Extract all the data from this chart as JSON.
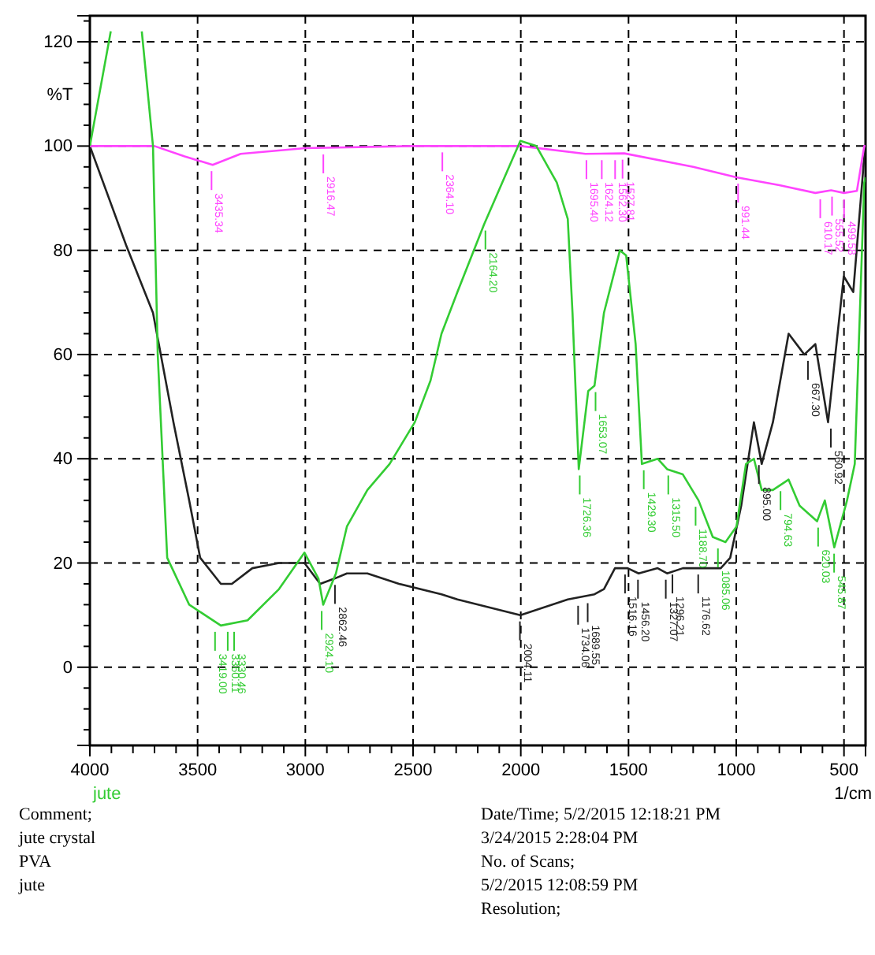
{
  "chart_data": {
    "type": "line",
    "xlabel": "1/cm",
    "ylabel": "%T",
    "xlim": [
      4000,
      400
    ],
    "ylim": [
      -15,
      125
    ],
    "xticks": [
      4000,
      {
        "value": 3900,
        "label": null
      },
      {
        "value": 3800,
        "label": null
      },
      {
        "value": 3700,
        "label": null
      },
      {
        "value": 3600,
        "label": null
      },
      3500,
      {
        "value": 3400,
        "label": null
      },
      {
        "value": 3300,
        "label": null
      },
      {
        "value": 3200,
        "label": null
      },
      {
        "value": 3100,
        "label": null
      },
      3000,
      {
        "value": 2900,
        "label": null
      },
      {
        "value": 2800,
        "label": null
      },
      {
        "value": 2700,
        "label": null
      },
      {
        "value": 2600,
        "label": null
      },
      2500,
      {
        "value": 2400,
        "label": null
      },
      {
        "value": 2300,
        "label": null
      },
      {
        "value": 2200,
        "label": null
      },
      {
        "value": 2100,
        "label": null
      },
      2000,
      {
        "value": 1900,
        "label": null
      },
      {
        "value": 1800,
        "label": null
      },
      {
        "value": 1700,
        "label": null
      },
      {
        "value": 1600,
        "label": null
      },
      1500,
      {
        "value": 1400,
        "label": null
      },
      {
        "value": 1300,
        "label": null
      },
      {
        "value": 1200,
        "label": null
      },
      {
        "value": 1100,
        "label": null
      },
      1000,
      {
        "value": 900,
        "label": null
      },
      {
        "value": 800,
        "label": null
      },
      {
        "value": 700,
        "label": null
      },
      {
        "value": 600,
        "label": null
      },
      500
    ],
    "yticks": [
      {
        "value": -12,
        "label": null
      },
      {
        "value": -8,
        "label": null
      },
      {
        "value": -4,
        "label": null
      },
      0,
      {
        "value": 4,
        "label": null
      },
      {
        "value": 8,
        "label": null
      },
      {
        "value": 12,
        "label": null
      },
      {
        "value": 16,
        "label": null
      },
      20,
      {
        "value": 24,
        "label": null
      },
      {
        "value": 28,
        "label": null
      },
      {
        "value": 32,
        "label": null
      },
      {
        "value": 36,
        "label": null
      },
      40,
      {
        "value": 44,
        "label": null
      },
      {
        "value": 48,
        "label": null
      },
      {
        "value": 52,
        "label": null
      },
      {
        "value": 56,
        "label": null
      },
      60,
      {
        "value": 64,
        "label": null
      },
      {
        "value": 68,
        "label": null
      },
      {
        "value": 72,
        "label": null
      },
      {
        "value": 76,
        "label": null
      },
      80,
      {
        "value": 84,
        "label": null
      },
      {
        "value": 88,
        "label": null
      },
      {
        "value": 92,
        "label": null
      },
      {
        "value": 96,
        "label": null
      },
      100,
      {
        "value": 104,
        "label": null
      },
      {
        "value": 108,
        "label": null
      },
      {
        "value": 112,
        "label": null
      },
      {
        "value": 116,
        "label": null
      },
      120,
      {
        "value": 124,
        "label": null
      }
    ],
    "grid": true,
    "legend": "bottom left",
    "line_style": "solid",
    "series": [
      {
        "color": "#222222",
        "x": [
          4000,
          3832,
          3707,
          3612,
          3539,
          3488,
          3392,
          3341,
          3246,
          3122,
          3004,
          2931,
          2865,
          2807,
          2712,
          2565,
          2368,
          2294,
          2002,
          1782,
          1658,
          1614,
          1563,
          1504,
          1453,
          1365,
          1321,
          1248,
          1176,
          1072,
          1028,
          977,
          918,
          882,
          830,
          757,
          684,
          633,
          574,
          501,
          457,
          406,
          400
        ],
        "values": [
          100,
          81,
          68,
          47,
          32,
          21,
          16,
          16,
          19,
          20,
          20,
          16,
          17,
          18,
          18,
          16,
          14,
          13,
          10,
          13,
          14,
          15,
          19,
          19,
          18,
          19,
          18,
          19,
          19,
          19,
          21,
          31,
          47,
          39,
          47,
          64,
          60,
          62,
          47,
          75,
          72,
          98,
          100
        ]
      },
      {
        "color": "#ff44ff",
        "x": [
          4000,
          3700,
          3560,
          3430,
          3300,
          3000,
          2500,
          2000,
          1700,
          1520,
          1200,
          1000,
          800,
          633,
          560,
          500,
          440,
          406,
          400
        ],
        "values": [
          100,
          100,
          98,
          96.4,
          98.5,
          99.6,
          100,
          100,
          98.5,
          98.6,
          96,
          94,
          92.5,
          91,
          91.5,
          91,
          91.4,
          100,
          100
        ]
      },
      {
        "name": "jute",
        "color": "#33cc33",
        "x": [
          4000,
          3903,
          3830,
          3759,
          3707,
          3685,
          3641,
          3539,
          3392,
          3268,
          3122,
          3004,
          2939,
          2917,
          2858,
          2807,
          2712,
          2609,
          2492,
          2419,
          2368,
          2294,
          2170,
          2002,
          1928,
          1833,
          1782,
          1760,
          1731,
          1687,
          1658,
          1614,
          1540,
          1511,
          1467,
          1438,
          1365,
          1321,
          1248,
          1175,
          1109,
          1050,
          999,
          955,
          918,
          882,
          830,
          757,
          706,
          625,
          589,
          545,
          486,
          450,
          406,
          400
        ],
        "values": [
          100,
          122,
          null,
          122,
          100,
          60,
          21,
          12,
          8,
          9,
          15,
          22,
          17,
          12,
          18,
          27,
          34,
          39,
          47,
          55,
          64,
          72,
          85,
          101,
          100,
          93,
          86,
          68,
          38,
          53,
          54,
          68,
          80,
          79,
          62,
          39,
          40,
          38,
          37,
          32,
          25,
          24,
          27,
          39,
          40,
          34,
          34,
          36,
          31,
          28,
          32,
          23,
          32,
          39,
          93,
          94
        ]
      }
    ],
    "annotations": [
      {
        "text": "3435.34",
        "x": 3435.34,
        "y": 96.4
      },
      {
        "text": "2916.47",
        "x": 2916.47,
        "y": 99.6
      },
      {
        "text": "2364.10",
        "x": 2364.1,
        "y": 100
      },
      {
        "text": "1695.40",
        "x": 1695.4,
        "y": 98.5
      },
      {
        "text": "1624.12",
        "x": 1624.12,
        "y": 98.5
      },
      {
        "text": "1562.30",
        "x": 1562.3,
        "y": 98.5
      },
      {
        "text": "1527.81",
        "x": 1527.81,
        "y": 98.6
      },
      {
        "text": "991.44",
        "x": 991.44,
        "y": 94
      },
      {
        "text": "610.17",
        "x": 610.17,
        "y": 91
      },
      {
        "text": "555.52",
        "x": 555.52,
        "y": 91.5
      },
      {
        "text": "499.58",
        "x": 499.58,
        "y": 91
      },
      {
        "text": "3419.00",
        "x": 3419,
        "y": 8
      },
      {
        "text": "3360.11",
        "x": 3360.11,
        "y": 8
      },
      {
        "text": "3330.46",
        "x": 3330.46,
        "y": 8
      },
      {
        "text": "2924.10",
        "x": 2924.1,
        "y": 12
      },
      {
        "text": "2164.20",
        "x": 2164.2,
        "y": 85
      },
      {
        "text": "1726.36",
        "x": 1726.36,
        "y": 38
      },
      {
        "text": "1653.07",
        "x": 1653.07,
        "y": 54
      },
      {
        "text": "1429.30",
        "x": 1429.3,
        "y": 39
      },
      {
        "text": "1315.50",
        "x": 1315.5,
        "y": 38
      },
      {
        "text": "1188.70",
        "x": 1188.7,
        "y": 32
      },
      {
        "text": "1085.06",
        "x": 1085.06,
        "y": 24
      },
      {
        "text": "895.00",
        "x": 895,
        "y": 40
      },
      {
        "text": "794.63",
        "x": 794.63,
        "y": 35
      },
      {
        "text": "620.03",
        "x": 620.03,
        "y": 28
      },
      {
        "text": "545.87",
        "x": 545.87,
        "y": 23
      },
      {
        "text": "2862.46",
        "x": 2862.46,
        "y": 17
      },
      {
        "text": "2004.11",
        "x": 2004.11,
        "y": 10
      },
      {
        "text": "1734.06",
        "x": 1734.06,
        "y": 13
      },
      {
        "text": "1689.55",
        "x": 1689.55,
        "y": 13.5
      },
      {
        "text": "1516.16",
        "x": 1516.16,
        "y": 19
      },
      {
        "text": "1456.20",
        "x": 1456.2,
        "y": 18
      },
      {
        "text": "1327.07",
        "x": 1327.07,
        "y": 18
      },
      {
        "text": "1296.21",
        "x": 1296.21,
        "y": 19
      },
      {
        "text": "1176.62",
        "x": 1176.62,
        "y": 19
      },
      {
        "text": "667.30",
        "x": 667.3,
        "y": 60
      },
      {
        "text": "560.92",
        "x": 560.92,
        "y": 47
      },
      "Comment;",
      "jute crystal",
      "PVA",
      "jute",
      "Date/Time;   5/2/2015 12:18:21 PM",
      "3/24/2015 2:28:04 PM",
      "No. of Scans;",
      "5/2/2015 12:08:59 PM",
      "Resolution;"
    ]
  }
}
